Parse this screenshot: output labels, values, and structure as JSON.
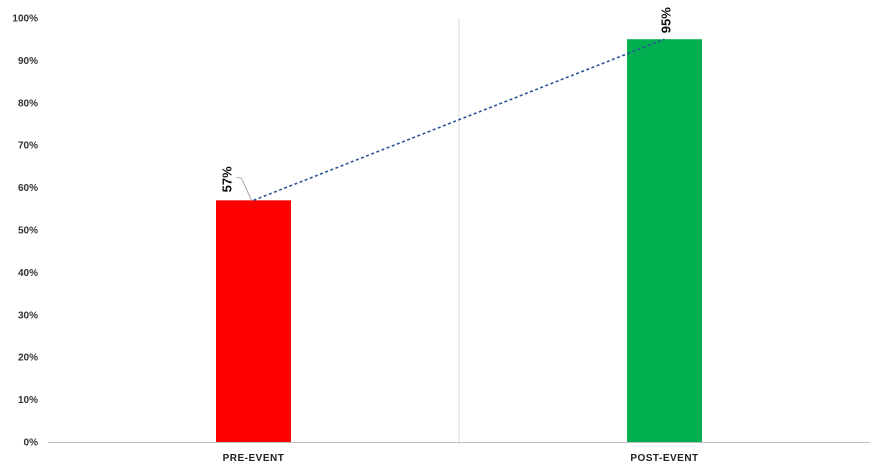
{
  "chart_data": {
    "type": "bar",
    "categories": [
      "PRE-EVENT",
      "POST-EVENT"
    ],
    "values": [
      57,
      95
    ],
    "data_labels": [
      "57%",
      "95%"
    ],
    "bar_colors": [
      "#ff0000",
      "#00b050"
    ],
    "trend_line": {
      "style": "dashed",
      "color": "#2e5597",
      "connects": "bar-tops"
    },
    "y_ticks": [
      "0%",
      "10%",
      "20%",
      "30%",
      "40%",
      "50%",
      "60%",
      "70%",
      "80%",
      "90%",
      "100%"
    ],
    "ylim": [
      0,
      100
    ],
    "y_unit": "%",
    "grid": "vertical-separator",
    "legend": "none",
    "title": "",
    "xlabel": "",
    "ylabel": ""
  }
}
